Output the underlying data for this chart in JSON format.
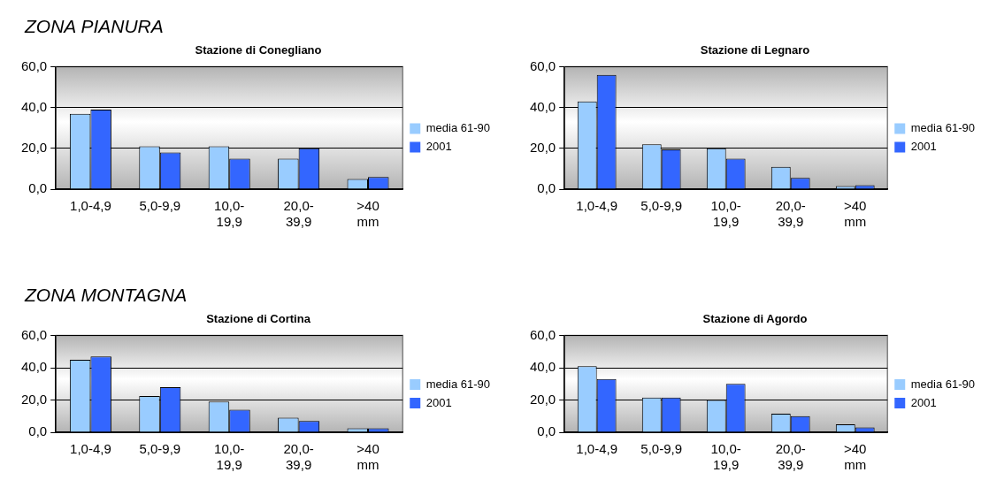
{
  "chart_data": [
    {
      "type": "bar",
      "title": "Stazione di Conegliano",
      "annotations": [
        "ZONA PIANURA"
      ],
      "categories": [
        "1,0-4,9",
        "5,0-9,9",
        "10,0-19,9",
        "20,0-39,9",
        ">40 mm"
      ],
      "series": [
        {
          "name": "media 61-90",
          "color": "#99ccff",
          "values": [
            37,
            21,
            21,
            15,
            5
          ]
        },
        {
          "name": "2001",
          "color": "#3366ff",
          "values": [
            39,
            18,
            15,
            20,
            6
          ]
        }
      ],
      "ylim": [
        0,
        60
      ],
      "yticks": [
        {
          "value": 0,
          "label": "0,0"
        },
        {
          "value": 20,
          "label": "20,0"
        },
        {
          "value": 40,
          "label": "40,0"
        },
        {
          "value": 60,
          "label": "60,0"
        }
      ],
      "grid": "y",
      "legend": "right"
    },
    {
      "type": "bar",
      "title": "Stazione di Legnaro",
      "categories": [
        "1,0-4,9",
        "5,0-9,9",
        "10,0-19,9",
        "20,0-39,9",
        ">40 mm"
      ],
      "series": [
        {
          "name": "media 61-90",
          "color": "#99ccff",
          "values": [
            43,
            22,
            20,
            11,
            1.5
          ]
        },
        {
          "name": "2001",
          "color": "#3366ff",
          "values": [
            56,
            19.5,
            15,
            5.5,
            2
          ]
        }
      ],
      "ylim": [
        0,
        60
      ],
      "yticks": [
        {
          "value": 0,
          "label": "0,0"
        },
        {
          "value": 20,
          "label": "20,0"
        },
        {
          "value": 40,
          "label": "40,0"
        },
        {
          "value": 60,
          "label": "60,0"
        }
      ],
      "grid": "y",
      "legend": "right"
    },
    {
      "type": "bar",
      "title": "Stazione di Cortina",
      "annotations": [
        "ZONA MONTAGNA"
      ],
      "categories": [
        "1,0-4,9",
        "5,0-9,9",
        "10,0-19,9",
        "20,0-39,9",
        ">40 mm"
      ],
      "series": [
        {
          "name": "media 61-90",
          "color": "#99ccff",
          "values": [
            45,
            22.5,
            19,
            9,
            2.5
          ]
        },
        {
          "name": "2001",
          "color": "#3366ff",
          "values": [
            47,
            28,
            14,
            7,
            2.5
          ]
        }
      ],
      "ylim": [
        0,
        60
      ],
      "yticks": [
        {
          "value": 0,
          "label": "0,0"
        },
        {
          "value": 20,
          "label": "20,0"
        },
        {
          "value": 40,
          "label": "40,0"
        },
        {
          "value": 60,
          "label": "60,0"
        }
      ],
      "grid": "y",
      "legend": "right"
    },
    {
      "type": "bar",
      "title": "Stazione di Agordo",
      "categories": [
        "1,0-4,9",
        "5,0-9,9",
        "10,0-19,9",
        "20,0-39,9",
        ">40 mm"
      ],
      "series": [
        {
          "name": "media 61-90",
          "color": "#99ccff",
          "values": [
            41,
            21.5,
            20,
            11.5,
            5
          ]
        },
        {
          "name": "2001",
          "color": "#3366ff",
          "values": [
            33,
            21.5,
            30,
            10,
            3
          ]
        }
      ],
      "ylim": [
        0,
        60
      ],
      "yticks": [
        {
          "value": 0,
          "label": "0,0"
        },
        {
          "value": 20,
          "label": "20,0"
        },
        {
          "value": 40,
          "label": "40,0"
        },
        {
          "value": 60,
          "label": "60,0"
        }
      ],
      "grid": "y",
      "legend": "right"
    }
  ]
}
